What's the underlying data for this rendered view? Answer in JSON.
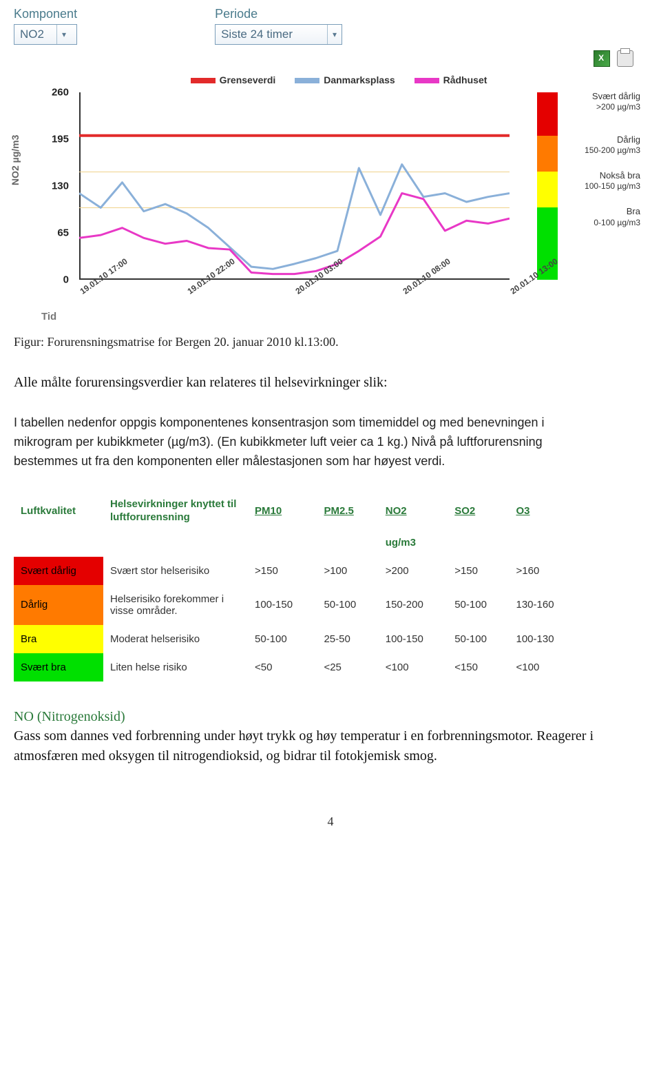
{
  "controls": {
    "component_label": "Komponent",
    "component_value": "NO2",
    "period_label": "Periode",
    "period_value": "Siste 24 timer"
  },
  "legend": {
    "items": [
      {
        "color": "#e22a2a",
        "label": "Grenseverdi"
      },
      {
        "color": "#8ab0d9",
        "label": "Danmarksplass"
      },
      {
        "color": "#e838c6",
        "label": "Rådhuset"
      }
    ]
  },
  "chart": {
    "type": "line",
    "y_title": "NO2 µg/m3",
    "x_title": "Tid",
    "ylim": [
      0,
      260
    ],
    "ymax": 260,
    "yticks": [
      0,
      65,
      130,
      195,
      260
    ],
    "xticks": [
      "19.01.10 17:00",
      "19.01.10 22:00",
      "20.01.10 03:00",
      "20.01.10 08:00",
      "20.01.10 13:00"
    ],
    "xstep": 5,
    "x_n": 21,
    "gridlines": [
      100,
      150,
      200
    ],
    "series": {
      "grenseverdi": {
        "color": "#e22a2a",
        "width": 4,
        "points": [
          [
            0,
            200
          ],
          [
            20,
            200
          ]
        ]
      },
      "danmarksplass": {
        "color": "#8ab0d9",
        "width": 3,
        "points": [
          [
            0,
            120
          ],
          [
            1,
            100
          ],
          [
            2,
            135
          ],
          [
            3,
            95
          ],
          [
            4,
            105
          ],
          [
            5,
            92
          ],
          [
            6,
            72
          ],
          [
            7,
            45
          ],
          [
            8,
            18
          ],
          [
            9,
            15
          ],
          [
            10,
            22
          ],
          [
            11,
            30
          ],
          [
            12,
            40
          ],
          [
            13,
            155
          ],
          [
            14,
            90
          ],
          [
            15,
            160
          ],
          [
            16,
            115
          ],
          [
            17,
            120
          ],
          [
            18,
            108
          ],
          [
            19,
            115
          ],
          [
            20,
            120
          ]
        ]
      },
      "radhuset": {
        "color": "#e838c6",
        "width": 3,
        "points": [
          [
            0,
            58
          ],
          [
            1,
            62
          ],
          [
            2,
            72
          ],
          [
            3,
            58
          ],
          [
            4,
            50
          ],
          [
            5,
            54
          ],
          [
            6,
            44
          ],
          [
            7,
            42
          ],
          [
            8,
            10
          ],
          [
            9,
            8
          ],
          [
            10,
            8
          ],
          [
            11,
            12
          ],
          [
            12,
            22
          ],
          [
            13,
            40
          ],
          [
            14,
            60
          ],
          [
            15,
            120
          ],
          [
            16,
            112
          ],
          [
            17,
            68
          ],
          [
            18,
            82
          ],
          [
            19,
            78
          ],
          [
            20,
            85
          ]
        ]
      }
    },
    "bands": [
      {
        "label": "Svært dårlig",
        "sub": ">200 µg/m3",
        "from": 200,
        "to": 260,
        "color": "#e40000"
      },
      {
        "label": "Dårlig",
        "sub": "150-200 µg/m3",
        "from": 150,
        "to": 200,
        "color": "#ff7a00"
      },
      {
        "label": "Nokså bra",
        "sub": "100-150 µg/m3",
        "from": 100,
        "to": 150,
        "color": "#ffff00"
      },
      {
        "label": "Bra",
        "sub": "0-100 µg/m3",
        "from": 0,
        "to": 100,
        "color": "#00e000"
      }
    ]
  },
  "caption": "Figur: Forurensningsmatrise for Bergen 20. januar 2010 kl.13:00.",
  "intro": "Alle målte forurensingsverdier kan relateres til helsevirkninger slik:",
  "explain": "I tabellen nedenfor oppgis komponentenes konsentrasjon som timemiddel og med benevningen i mikrogram per kubikkmeter (µg/m3). (En kubikkmeter luft veier ca 1 kg.) Nivå på luftforurensning bestemmes ut fra den komponenten eller målestasjonen som har høyest verdi.",
  "table": {
    "head_quality": "Luftkvalitet",
    "head_health": "Helsevirkninger knyttet til luftforurensning",
    "unit": "ug/m3",
    "cols": [
      "PM10",
      "PM2.5",
      "NO2",
      "SO2",
      "O3"
    ],
    "rows": [
      {
        "cat": "Svært dårlig",
        "color": "#e40000",
        "desc": "Svært stor helserisiko",
        "vals": [
          ">150",
          ">100",
          ">200",
          ">150",
          ">160"
        ]
      },
      {
        "cat": "Dårlig",
        "color": "#ff7a00",
        "desc": "Helserisiko forekommer i visse områder.",
        "vals": [
          "100-150",
          "50-100",
          "150-200",
          "50-100",
          "130-160"
        ]
      },
      {
        "cat": "Bra",
        "color": "#ffff00",
        "desc": "Moderat helserisiko",
        "vals": [
          "50-100",
          "25-50",
          "100-150",
          "50-100",
          "100-130"
        ]
      },
      {
        "cat": "Svært bra",
        "color": "#00e000",
        "desc": "Liten helse risiko",
        "vals": [
          "<50",
          "<25",
          "<100",
          "<150",
          "<100"
        ]
      }
    ]
  },
  "section": {
    "title": "NO (Nitrogenoksid)",
    "body": "Gass som dannes ved forbrenning under høyt trykk og høy temperatur i en forbrenningsmotor. Reagerer i atmosfæren med oksygen til nitrogendioksid, og bidrar til fotokjemisk smog."
  },
  "page": "4"
}
